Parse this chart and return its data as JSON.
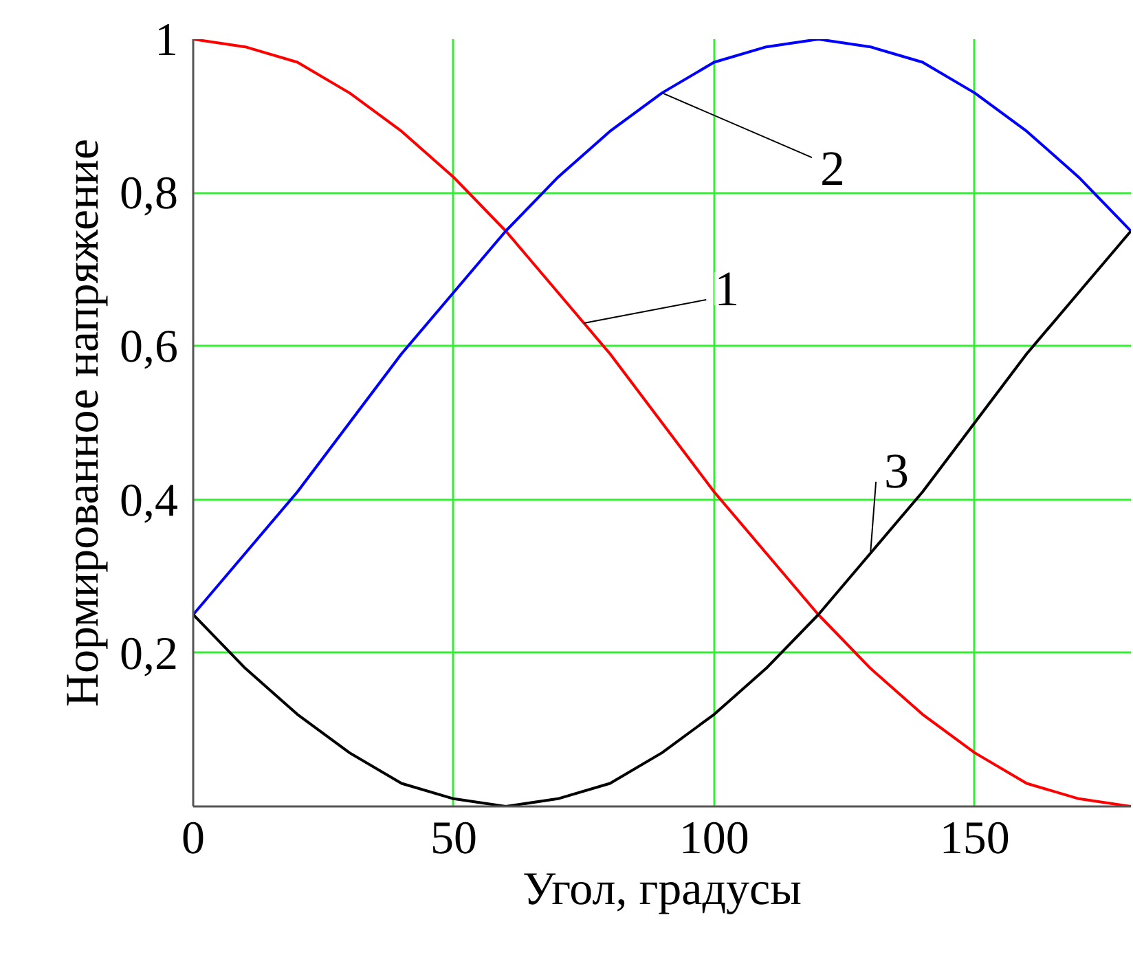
{
  "chart_data": {
    "type": "line",
    "xlabel": "Угол, градусы",
    "ylabel": "Нормированное напряжение",
    "x": [
      0,
      10,
      20,
      30,
      40,
      50,
      60,
      70,
      80,
      90,
      100,
      110,
      120,
      130,
      140,
      150,
      160,
      170,
      180
    ],
    "series": [
      {
        "color": "#ff0000",
        "values": [
          1,
          0.99,
          0.97,
          0.93,
          0.88,
          0.82,
          0.75,
          0.67,
          0.59,
          0.5,
          0.41,
          0.33,
          0.25,
          0.18,
          0.12,
          0.07,
          0.03,
          0.01,
          0
        ]
      },
      {
        "color": "#0000ff",
        "values": [
          0.25,
          0.33,
          0.41,
          0.5,
          0.59,
          0.67,
          0.75,
          0.82,
          0.88,
          0.93,
          0.97,
          0.99,
          1,
          0.99,
          0.97,
          0.93,
          0.88,
          0.82,
          0.75
        ]
      },
      {
        "color": "#000000",
        "values": [
          0.25,
          0.18,
          0.12,
          0.07,
          0.03,
          0.01,
          0,
          0.01,
          0.03,
          0.07,
          0.12,
          0.18,
          0.25,
          0.33,
          0.41,
          0.5,
          0.59,
          0.67,
          0.75
        ]
      }
    ],
    "annotations": [
      {
        "text": "1",
        "x": 75,
        "y": 0.63
      },
      {
        "text": "2",
        "x": 90,
        "y": 0.93
      },
      {
        "text": "3",
        "x": 130,
        "y": 0.33
      }
    ],
    "xlim": [
      0,
      180
    ],
    "ylim": [
      0,
      1
    ],
    "xticks": [
      0,
      50,
      100,
      150
    ],
    "yticks": [
      {
        "value": 0.2,
        "label": "0,2"
      },
      {
        "value": 0.4,
        "label": "0,4"
      },
      {
        "value": 0.6,
        "label": "0,6"
      },
      {
        "value": 0.8,
        "label": "0,8"
      },
      1
    ],
    "grid": true,
    "line_style": "solid"
  }
}
